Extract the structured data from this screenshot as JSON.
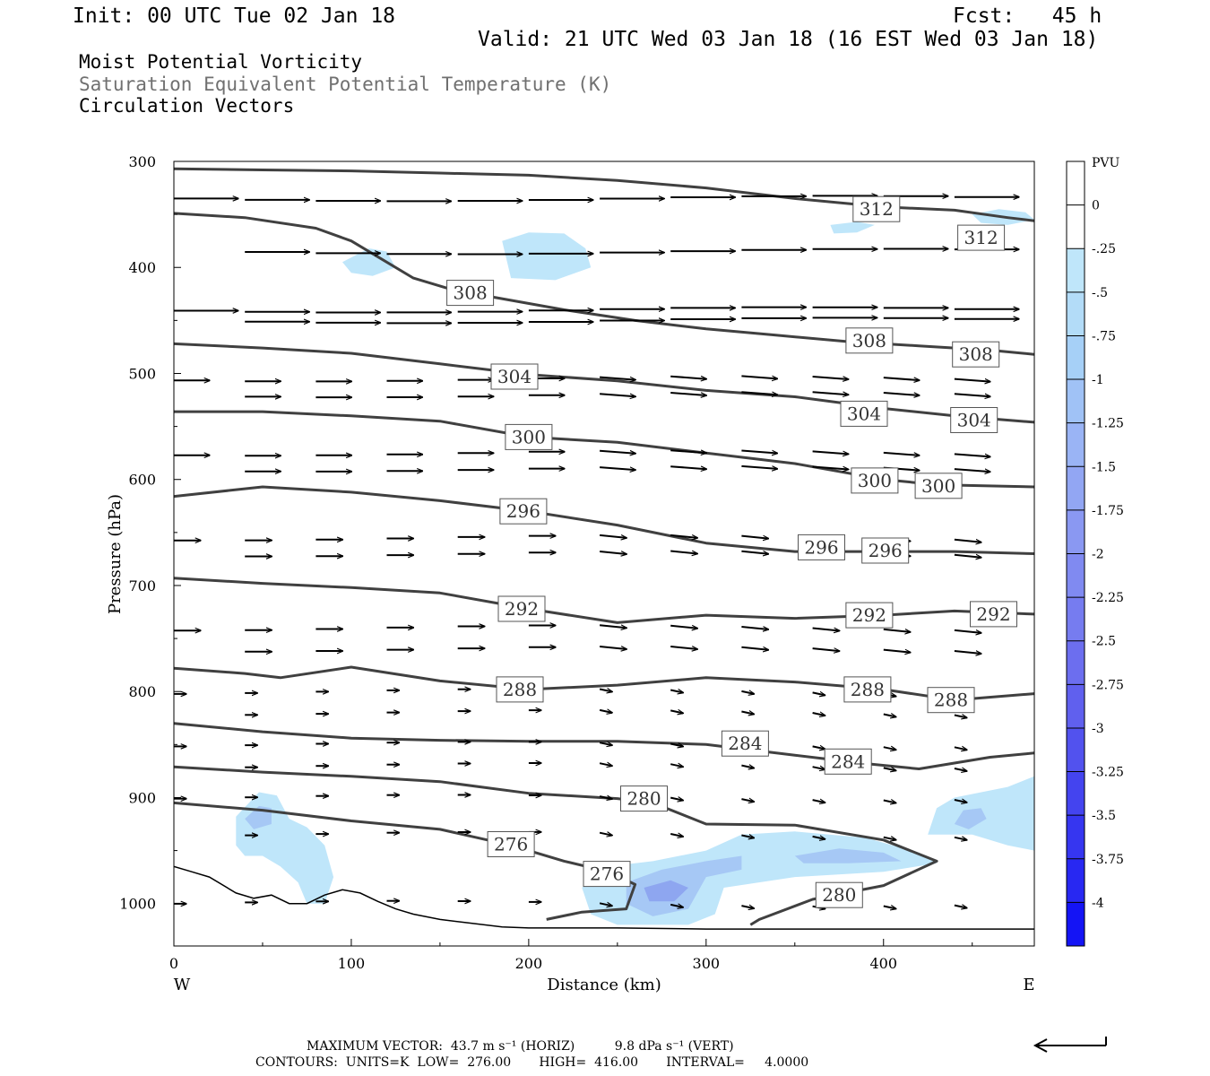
{
  "header": {
    "init": "Init: 00 UTC Tue 02 Jan 18",
    "fcst": "Fcst:   45 h",
    "valid": "Valid: 21 UTC Wed 03 Jan 18 (16 EST Wed 03 Jan 18)",
    "field1": "Moist Potential Vorticity",
    "field2": "Saturation Equivalent Potential Temperature (K)",
    "field3": "Circulation Vectors"
  },
  "footer": {
    "max_vector": "MAXIMUM VECTOR:  43.7 m s⁻¹ (HORIZ)          9.8 dPa s⁻¹ (VERT)",
    "contours": "CONTOURS:  UNITS=K  LOW=  276.00       HIGH=  416.00       INTERVAL=     4.0000"
  },
  "colors": {
    "contour": "#404040",
    "shade_light": "#bfe6fa",
    "shade_mid": "#a6c8f5",
    "shade_dark": "#8ea6f0"
  },
  "chart_data": {
    "type": "cross-section",
    "xlabel": "Distance (km)",
    "ylabel": "Pressure (hPa)",
    "xlim": [
      0,
      485
    ],
    "ylim": [
      300,
      1040
    ],
    "x_ticks": [
      0,
      100,
      200,
      300,
      400
    ],
    "y_ticks": [
      300,
      400,
      500,
      600,
      700,
      800,
      900,
      1000
    ],
    "x_end_labels": {
      "left": "W",
      "right": "E"
    },
    "colorbar": {
      "unit": "PVU",
      "levels": [
        "0",
        "-.25",
        "-.5",
        "-.75",
        "-1",
        "-1.25",
        "-1.5",
        "-1.75",
        "-2",
        "-2.25",
        "-2.5",
        "-2.75",
        "-3",
        "-3.25",
        "-3.5",
        "-3.75",
        "-4"
      ],
      "colors": [
        "#ffffff",
        "#ffffff",
        "#bfe6fa",
        "#b3dcf8",
        "#a6d0f7",
        "#a0c2f6",
        "#9ab4f5",
        "#92a6f3",
        "#8a98f2",
        "#808af1",
        "#767cf0",
        "#6c6eef",
        "#6060ee",
        "#5252ee",
        "#4444ef",
        "#3636f0",
        "#2828f2",
        "#1414f5"
      ]
    },
    "contours": [
      {
        "label": "312",
        "points": [
          [
            0,
            307
          ],
          [
            50,
            308
          ],
          [
            100,
            309
          ],
          [
            150,
            311
          ],
          [
            200,
            313
          ],
          [
            250,
            318
          ],
          [
            300,
            325
          ],
          [
            350,
            335
          ],
          [
            400,
            343
          ],
          [
            440,
            346
          ],
          [
            470,
            353
          ],
          [
            485,
            356
          ]
        ],
        "labels_at": [
          [
            396,
            345
          ],
          [
            455,
            372
          ]
        ]
      },
      {
        "label": "308",
        "points": [
          [
            0,
            349
          ],
          [
            40,
            353
          ],
          [
            80,
            363
          ],
          [
            100,
            375
          ],
          [
            115,
            390
          ],
          [
            135,
            410
          ],
          [
            155,
            420
          ],
          [
            180,
            428
          ],
          [
            220,
            440
          ],
          [
            260,
            450
          ],
          [
            300,
            458
          ],
          [
            340,
            464
          ],
          [
            380,
            470
          ],
          [
            420,
            474
          ],
          [
            460,
            478
          ],
          [
            485,
            482
          ]
        ],
        "labels_at": [
          [
            167,
            424
          ],
          [
            392,
            469
          ],
          [
            452,
            482
          ]
        ]
      },
      {
        "label": "304",
        "points": [
          [
            0,
            472
          ],
          [
            50,
            476
          ],
          [
            100,
            481
          ],
          [
            150,
            491
          ],
          [
            200,
            501
          ],
          [
            250,
            507
          ],
          [
            300,
            516
          ],
          [
            350,
            522
          ],
          [
            400,
            533
          ],
          [
            440,
            540
          ],
          [
            485,
            546
          ]
        ],
        "labels_at": [
          [
            192,
            503
          ],
          [
            389,
            538
          ],
          [
            451,
            544
          ]
        ]
      },
      {
        "label": "300",
        "points": [
          [
            0,
            536
          ],
          [
            50,
            536
          ],
          [
            100,
            540
          ],
          [
            150,
            545
          ],
          [
            200,
            560
          ],
          [
            250,
            565
          ],
          [
            300,
            575
          ],
          [
            350,
            585
          ],
          [
            400,
            600
          ],
          [
            430,
            605
          ],
          [
            485,
            607
          ]
        ],
        "labels_at": [
          [
            200,
            560
          ],
          [
            395,
            601
          ],
          [
            431,
            606
          ]
        ]
      },
      {
        "label": "296",
        "points": [
          [
            0,
            616
          ],
          [
            50,
            607
          ],
          [
            100,
            612
          ],
          [
            150,
            620
          ],
          [
            200,
            630
          ],
          [
            250,
            643
          ],
          [
            300,
            660
          ],
          [
            350,
            668
          ],
          [
            400,
            668
          ],
          [
            440,
            668
          ],
          [
            485,
            670
          ]
        ],
        "labels_at": [
          [
            197,
            630
          ],
          [
            365,
            664
          ],
          [
            401,
            667
          ]
        ]
      },
      {
        "label": "292",
        "points": [
          [
            0,
            693
          ],
          [
            50,
            698
          ],
          [
            100,
            702
          ],
          [
            150,
            707
          ],
          [
            200,
            722
          ],
          [
            250,
            735
          ],
          [
            300,
            728
          ],
          [
            350,
            731
          ],
          [
            400,
            728
          ],
          [
            440,
            724
          ],
          [
            485,
            727
          ]
        ],
        "labels_at": [
          [
            196,
            722
          ],
          [
            392,
            728
          ],
          [
            462,
            727
          ]
        ]
      },
      {
        "label": "288",
        "points": [
          [
            0,
            778
          ],
          [
            40,
            783
          ],
          [
            60,
            787
          ],
          [
            100,
            777
          ],
          [
            150,
            790
          ],
          [
            200,
            798
          ],
          [
            250,
            794
          ],
          [
            300,
            787
          ],
          [
            350,
            791
          ],
          [
            400,
            798
          ],
          [
            440,
            808
          ],
          [
            485,
            802
          ]
        ],
        "labels_at": [
          [
            195,
            798
          ],
          [
            391,
            798
          ],
          [
            438,
            808
          ]
        ]
      },
      {
        "label": "284",
        "points": [
          [
            0,
            830
          ],
          [
            50,
            838
          ],
          [
            100,
            844
          ],
          [
            150,
            846
          ],
          [
            200,
            847
          ],
          [
            250,
            847
          ],
          [
            300,
            850
          ],
          [
            350,
            860
          ],
          [
            390,
            868
          ],
          [
            420,
            873
          ],
          [
            460,
            862
          ],
          [
            485,
            858
          ]
        ],
        "labels_at": [
          [
            322,
            849
          ],
          [
            380,
            866
          ]
        ]
      },
      {
        "label": "280",
        "points": [
          [
            0,
            871
          ],
          [
            50,
            876
          ],
          [
            100,
            880
          ],
          [
            150,
            885
          ],
          [
            200,
            896
          ],
          [
            250,
            901
          ],
          [
            270,
            905
          ],
          [
            300,
            925
          ],
          [
            350,
            926
          ],
          [
            400,
            940
          ],
          [
            430,
            960
          ],
          [
            400,
            983
          ],
          [
            360,
            996
          ],
          [
            330,
            1015
          ],
          [
            325,
            1020
          ]
        ],
        "labels_at": [
          [
            265,
            901
          ],
          [
            375,
            992
          ]
        ]
      },
      {
        "label": "276",
        "points": [
          [
            0,
            905
          ],
          [
            50,
            912
          ],
          [
            100,
            922
          ],
          [
            150,
            930
          ],
          [
            190,
            945
          ],
          [
            220,
            960
          ],
          [
            245,
            970
          ],
          [
            260,
            982
          ],
          [
            255,
            1005
          ],
          [
            230,
            1008
          ],
          [
            210,
            1015
          ]
        ],
        "labels_at": [
          [
            190,
            944
          ],
          [
            244,
            972
          ]
        ]
      }
    ],
    "terrain": [
      [
        0,
        965
      ],
      [
        10,
        970
      ],
      [
        20,
        975
      ],
      [
        35,
        990
      ],
      [
        45,
        995
      ],
      [
        55,
        992
      ],
      [
        65,
        1000
      ],
      [
        75,
        1000
      ],
      [
        85,
        992
      ],
      [
        95,
        987
      ],
      [
        105,
        990
      ],
      [
        115,
        998
      ],
      [
        125,
        1005
      ],
      [
        135,
        1010
      ],
      [
        150,
        1015
      ],
      [
        165,
        1018
      ],
      [
        185,
        1022
      ],
      [
        200,
        1023
      ],
      [
        250,
        1023
      ],
      [
        300,
        1024
      ],
      [
        350,
        1024
      ],
      [
        400,
        1024
      ],
      [
        450,
        1024
      ],
      [
        485,
        1024
      ]
    ],
    "shading": [
      {
        "level": -0.25,
        "points": [
          [
            370,
            360
          ],
          [
            385,
            357
          ],
          [
            395,
            360
          ],
          [
            385,
            367
          ],
          [
            372,
            368
          ]
        ]
      },
      {
        "level": -0.25,
        "points": [
          [
            450,
            350
          ],
          [
            465,
            345
          ],
          [
            480,
            348
          ],
          [
            485,
            355
          ],
          [
            470,
            360
          ],
          [
            455,
            358
          ]
        ]
      },
      {
        "level": -0.25,
        "points": [
          [
            95,
            395
          ],
          [
            110,
            382
          ],
          [
            120,
            385
          ],
          [
            125,
            400
          ],
          [
            112,
            408
          ],
          [
            100,
            405
          ]
        ]
      },
      {
        "level": -0.25,
        "points": [
          [
            185,
            375
          ],
          [
            200,
            367
          ],
          [
            220,
            368
          ],
          [
            232,
            382
          ],
          [
            235,
            400
          ],
          [
            215,
            412
          ],
          [
            190,
            410
          ]
        ]
      },
      {
        "level": -0.25,
        "points": [
          [
            35,
            918
          ],
          [
            48,
            895
          ],
          [
            58,
            898
          ],
          [
            65,
            920
          ],
          [
            75,
            928
          ],
          [
            85,
            945
          ],
          [
            90,
            975
          ],
          [
            85,
            1000
          ],
          [
            75,
            1000
          ],
          [
            70,
            980
          ],
          [
            60,
            965
          ],
          [
            50,
            955
          ],
          [
            40,
            955
          ],
          [
            35,
            945
          ]
        ]
      },
      {
        "level": -0.25,
        "points": [
          [
            230,
            985
          ],
          [
            245,
            965
          ],
          [
            270,
            960
          ],
          [
            300,
            950
          ],
          [
            320,
            935
          ],
          [
            350,
            932
          ],
          [
            390,
            938
          ],
          [
            420,
            952
          ],
          [
            430,
            962
          ],
          [
            400,
            970
          ],
          [
            350,
            975
          ],
          [
            310,
            985
          ],
          [
            305,
            1010
          ],
          [
            290,
            1020
          ],
          [
            250,
            1020
          ],
          [
            235,
            1010
          ]
        ]
      },
      {
        "level": -0.25,
        "points": [
          [
            425,
            935
          ],
          [
            430,
            910
          ],
          [
            440,
            900
          ],
          [
            470,
            890
          ],
          [
            485,
            880
          ],
          [
            485,
            950
          ],
          [
            470,
            945
          ],
          [
            450,
            935
          ]
        ]
      },
      {
        "level": -0.5,
        "points": [
          [
            255,
            980
          ],
          [
            275,
            968
          ],
          [
            300,
            960
          ],
          [
            320,
            955
          ],
          [
            320,
            968
          ],
          [
            300,
            975
          ],
          [
            290,
            1005
          ],
          [
            270,
            1012
          ],
          [
            255,
            1000
          ]
        ]
      },
      {
        "level": -0.5,
        "points": [
          [
            350,
            955
          ],
          [
            375,
            948
          ],
          [
            400,
            952
          ],
          [
            410,
            960
          ],
          [
            380,
            962
          ],
          [
            355,
            962
          ]
        ]
      },
      {
        "level": -0.5,
        "points": [
          [
            40,
            920
          ],
          [
            48,
            908
          ],
          [
            55,
            910
          ],
          [
            55,
            925
          ],
          [
            45,
            930
          ]
        ]
      },
      {
        "level": -0.5,
        "points": [
          [
            440,
            925
          ],
          [
            445,
            912
          ],
          [
            455,
            910
          ],
          [
            458,
            920
          ],
          [
            448,
            930
          ]
        ]
      },
      {
        "level": -0.75,
        "points": [
          [
            265,
            985
          ],
          [
            280,
            978
          ],
          [
            290,
            985
          ],
          [
            282,
            998
          ],
          [
            268,
            998
          ]
        ]
      }
    ],
    "vectors": {
      "rows_p": [
        335,
        385,
        440,
        450,
        505,
        520,
        575,
        590,
        655,
        670,
        740,
        760,
        800,
        820,
        850,
        870,
        900,
        935,
        1000
      ]
    }
  }
}
